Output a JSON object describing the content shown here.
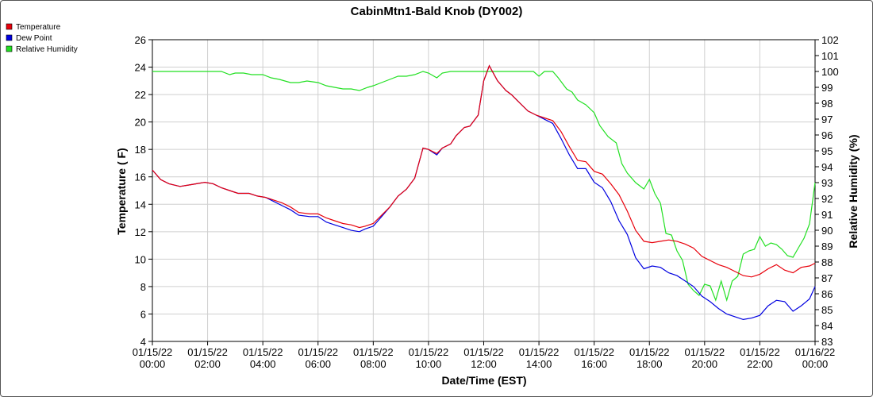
{
  "chart_data": {
    "type": "line",
    "title": "CabinMtn1-Bald Knob (DY002)",
    "xlabel": "Date/Time (EST)",
    "ylabel": "Temperature ( F)",
    "y2label": "Relative Humidity (%)",
    "xlim": [
      0,
      24
    ],
    "ylim": [
      4,
      26
    ],
    "y2lim": [
      83,
      102
    ],
    "x_ticks": [
      {
        "date": "01/15/22",
        "time": "00:00"
      },
      {
        "date": "01/15/22",
        "time": "02:00"
      },
      {
        "date": "01/15/22",
        "time": "04:00"
      },
      {
        "date": "01/15/22",
        "time": "06:00"
      },
      {
        "date": "01/15/22",
        "time": "08:00"
      },
      {
        "date": "01/15/22",
        "time": "10:00"
      },
      {
        "date": "01/15/22",
        "time": "12:00"
      },
      {
        "date": "01/15/22",
        "time": "14:00"
      },
      {
        "date": "01/15/22",
        "time": "16:00"
      },
      {
        "date": "01/15/22",
        "time": "18:00"
      },
      {
        "date": "01/15/22",
        "time": "20:00"
      },
      {
        "date": "01/15/22",
        "time": "22:00"
      },
      {
        "date": "01/16/22",
        "time": "00:00"
      }
    ],
    "y_ticks": [
      4,
      6,
      8,
      10,
      12,
      14,
      16,
      18,
      20,
      22,
      24,
      26
    ],
    "y2_ticks": [
      83,
      84,
      85,
      86,
      87,
      88,
      89,
      90,
      91,
      92,
      93,
      94,
      95,
      96,
      97,
      98,
      99,
      100,
      101,
      102
    ],
    "grid": true,
    "legend_position": "top-left",
    "series": [
      {
        "name": "Temperature",
        "color": "#e8000b",
        "axis": "left",
        "x": [
          0,
          0.3,
          0.6,
          1,
          1.3,
          1.6,
          1.9,
          2.2,
          2.5,
          2.8,
          3.1,
          3.5,
          3.8,
          4.1,
          4.4,
          4.7,
          5,
          5.3,
          5.7,
          6,
          6.3,
          6.6,
          6.9,
          7.2,
          7.5,
          7.7,
          8,
          8.3,
          8.6,
          8.9,
          9.2,
          9.5,
          9.8,
          10,
          10.3,
          10.5,
          10.8,
          11,
          11.3,
          11.5,
          11.8,
          12,
          12.2,
          12.5,
          12.8,
          13,
          13.3,
          13.6,
          13.9,
          14.2,
          14.5,
          14.8,
          15.1,
          15.4,
          15.7,
          16,
          16.3,
          16.6,
          16.9,
          17.2,
          17.5,
          17.8,
          18.1,
          18.4,
          18.7,
          19,
          19.3,
          19.6,
          19.9,
          20.2,
          20.5,
          20.8,
          21.1,
          21.4,
          21.7,
          22,
          22.3,
          22.6,
          22.9,
          23.2,
          23.5,
          23.8,
          24
        ],
        "y": [
          16.5,
          15.8,
          15.5,
          15.3,
          15.4,
          15.5,
          15.6,
          15.5,
          15.2,
          15,
          14.8,
          14.8,
          14.6,
          14.5,
          14.3,
          14.1,
          13.8,
          13.4,
          13.3,
          13.3,
          13,
          12.8,
          12.6,
          12.5,
          12.3,
          12.4,
          12.6,
          13.2,
          13.8,
          14.6,
          15.1,
          15.9,
          18.1,
          18,
          17.7,
          18.1,
          18.4,
          19,
          19.6,
          19.7,
          20.5,
          23,
          24.1,
          23,
          22.3,
          22,
          21.4,
          20.8,
          20.5,
          20.3,
          20.1,
          19.3,
          18.2,
          17.2,
          17.1,
          16.4,
          16.2,
          15.5,
          14.7,
          13.5,
          12.1,
          11.3,
          11.2,
          11.3,
          11.4,
          11.3,
          11.1,
          10.8,
          10.2,
          9.9,
          9.6,
          9.4,
          9.1,
          8.8,
          8.7,
          8.9,
          9.3,
          9.6,
          9.2,
          9,
          9.4,
          9.5,
          9.7
        ]
      },
      {
        "name": "Dew Point",
        "color": "#0000e0",
        "axis": "left",
        "x": [
          0,
          0.3,
          0.6,
          1,
          1.3,
          1.6,
          1.9,
          2.2,
          2.5,
          2.8,
          3.1,
          3.5,
          3.8,
          4.1,
          4.4,
          4.7,
          5,
          5.3,
          5.7,
          6,
          6.3,
          6.6,
          6.9,
          7.2,
          7.5,
          7.7,
          8,
          8.3,
          8.6,
          8.9,
          9.2,
          9.5,
          9.8,
          10,
          10.3,
          10.5,
          10.8,
          11,
          11.3,
          11.5,
          11.8,
          12,
          12.2,
          12.5,
          12.8,
          13,
          13.3,
          13.6,
          13.9,
          14.2,
          14.5,
          14.8,
          15.1,
          15.4,
          15.7,
          16,
          16.3,
          16.6,
          16.9,
          17.2,
          17.5,
          17.8,
          18.1,
          18.4,
          18.7,
          19,
          19.3,
          19.6,
          19.9,
          20.2,
          20.5,
          20.8,
          21.1,
          21.4,
          21.7,
          22,
          22.3,
          22.6,
          22.9,
          23.2,
          23.5,
          23.8,
          24
        ],
        "y": [
          16.5,
          15.8,
          15.5,
          15.3,
          15.4,
          15.5,
          15.6,
          15.5,
          15.2,
          15,
          14.8,
          14.8,
          14.6,
          14.5,
          14.2,
          13.9,
          13.6,
          13.2,
          13.1,
          13.1,
          12.7,
          12.5,
          12.3,
          12.1,
          12,
          12.2,
          12.4,
          13.1,
          13.8,
          14.6,
          15.1,
          15.9,
          18.1,
          18,
          17.6,
          18.1,
          18.4,
          19,
          19.6,
          19.7,
          20.5,
          23,
          24.1,
          23,
          22.3,
          22,
          21.4,
          20.8,
          20.5,
          20.2,
          19.9,
          18.8,
          17.6,
          16.6,
          16.6,
          15.6,
          15.2,
          14.2,
          12.8,
          11.8,
          10.1,
          9.3,
          9.5,
          9.4,
          9,
          8.8,
          8.4,
          8,
          7.3,
          6.9,
          6.4,
          6,
          5.8,
          5.6,
          5.7,
          5.9,
          6.6,
          7,
          6.9,
          6.2,
          6.6,
          7.1,
          8
        ]
      },
      {
        "name": "Relative Humidity",
        "color": "#22e022",
        "axis": "right",
        "x": [
          0,
          0.5,
          1,
          1.5,
          2,
          2.5,
          2.8,
          3,
          3.3,
          3.6,
          4,
          4.3,
          4.6,
          5,
          5.3,
          5.6,
          6,
          6.3,
          6.6,
          6.9,
          7.2,
          7.5,
          7.8,
          8,
          8.3,
          8.6,
          8.9,
          9.2,
          9.5,
          9.8,
          10,
          10.3,
          10.5,
          10.8,
          11,
          11.3,
          11.6,
          12,
          12.3,
          12.6,
          12.9,
          13.2,
          13.5,
          13.8,
          14,
          14.2,
          14.5,
          14.7,
          15,
          15.2,
          15.4,
          15.7,
          16,
          16.2,
          16.5,
          16.8,
          17,
          17.2,
          17.5,
          17.8,
          18,
          18.2,
          18.4,
          18.6,
          18.8,
          19,
          19.2,
          19.4,
          19.6,
          19.8,
          20,
          20.2,
          20.4,
          20.6,
          20.8,
          21,
          21.2,
          21.4,
          21.6,
          21.8,
          22,
          22.2,
          22.4,
          22.6,
          22.8,
          23,
          23.2,
          23.4,
          23.6,
          23.8,
          24
        ],
        "y": [
          100,
          100,
          100,
          100,
          100,
          100,
          99.8,
          99.9,
          99.9,
          99.8,
          99.8,
          99.6,
          99.5,
          99.3,
          99.3,
          99.4,
          99.3,
          99.1,
          99,
          98.9,
          98.9,
          98.8,
          99,
          99.1,
          99.3,
          99.5,
          99.7,
          99.7,
          99.8,
          100,
          99.9,
          99.6,
          99.9,
          100,
          100,
          100,
          100,
          100,
          100,
          100,
          100,
          100,
          100,
          100,
          99.7,
          100,
          100,
          99.6,
          98.9,
          98.7,
          98.2,
          97.9,
          97.4,
          96.6,
          95.9,
          95.5,
          94.2,
          93.6,
          93,
          92.6,
          93.2,
          92.3,
          91.7,
          89.8,
          89.7,
          88.7,
          88.1,
          86.6,
          86.2,
          85.9,
          86.6,
          86.5,
          85.6,
          86.8,
          85.6,
          86.8,
          87.1,
          88.5,
          88.7,
          88.8,
          89.6,
          89,
          89.2,
          89.1,
          88.8,
          88.4,
          88.3,
          88.9,
          89.5,
          90.4,
          93
        ]
      }
    ]
  }
}
